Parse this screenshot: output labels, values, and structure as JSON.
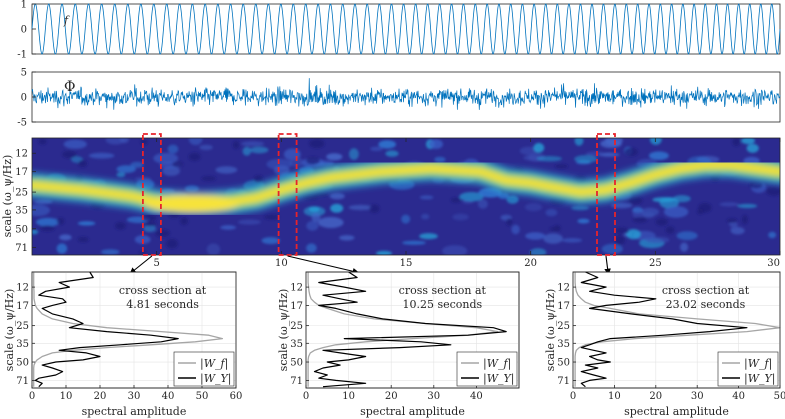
{
  "chart_data": [
    {
      "id": "signal_f",
      "type": "line",
      "label": "f",
      "ylim": [
        -1,
        1
      ],
      "yticks": [
        "-1",
        "0",
        "1"
      ],
      "xlim": [
        0,
        30
      ],
      "description_series": {
        "name": "f",
        "kind": "chirp-like sinusoid",
        "amplitude": 1,
        "approx_cycles": 62
      }
    },
    {
      "id": "signal_phi",
      "type": "line",
      "label": "Φ",
      "ylim": [
        -5,
        5
      ],
      "yticks": [
        "-5",
        "0",
        "5"
      ],
      "xlim": [
        0,
        30
      ],
      "series": [
        {
          "name": "Φ",
          "kind": "noisy signal",
          "typical_amplitude": 2.5
        }
      ]
    },
    {
      "id": "scalogram",
      "type": "heatmap",
      "ylabel": "scale (ω_ψ/Hz)",
      "yticks": [
        "12",
        "17",
        "25",
        "35",
        "50",
        "71"
      ],
      "xticks": [
        "5",
        "10",
        "15",
        "20",
        "25",
        "30"
      ],
      "xlim": [
        0,
        30
      ],
      "ridge": {
        "time": [
          0,
          2,
          4,
          5,
          6,
          7,
          8,
          9,
          10,
          11,
          12,
          14,
          16,
          18,
          19,
          20,
          21,
          22,
          23,
          24,
          25,
          26,
          27,
          28,
          30
        ],
        "scale": [
          22,
          24,
          27,
          30,
          31,
          31,
          30,
          28,
          24,
          21,
          19,
          17,
          16,
          17,
          20,
          21,
          23,
          25,
          24,
          21,
          18,
          16,
          15,
          15,
          17
        ]
      },
      "cross_sections_seconds": [
        4.81,
        10.25,
        23.02
      ]
    },
    {
      "id": "cross_section_1",
      "type": "line",
      "annotation": "cross section at\n4.81 seconds",
      "annotation_lines": [
        "cross section at",
        "4.81 seconds"
      ],
      "xlabel": "spectral amplitude",
      "ylabel": "scale (ω_ψ/Hz)",
      "xticks": [
        "0",
        "10",
        "20",
        "30",
        "40",
        "50",
        "60"
      ],
      "xlim": [
        0,
        60
      ],
      "yticks": [
        "12",
        "17",
        "25",
        "35",
        "50",
        "71"
      ],
      "legend": [
        "|W_f|",
        "|W_Y|"
      ],
      "scale": [
        9,
        10,
        11,
        12,
        13,
        14,
        15,
        16,
        17,
        18,
        20,
        22,
        24,
        26,
        28,
        30,
        32,
        34,
        36,
        38,
        40,
        42,
        45,
        48,
        50,
        53,
        56,
        60,
        64,
        68,
        71,
        75,
        80
      ],
      "series": [
        {
          "name": "|W_f|",
          "color": "#a6a6a6",
          "values": [
            0.5,
            0.5,
            0.5,
            0.5,
            0.6,
            0.6,
            0.6,
            0.8,
            1,
            1.5,
            3,
            6,
            12,
            22,
            38,
            52,
            56,
            48,
            35,
            22,
            12,
            6,
            3,
            1.5,
            1,
            0.6,
            0.5,
            0.5,
            0.5,
            0.5,
            0.5,
            0.5,
            0.5
          ]
        },
        {
          "name": "|W_Y|",
          "color": "#000000",
          "values": [
            17,
            18,
            8,
            11,
            4,
            2,
            9,
            10,
            6,
            3,
            6,
            12,
            15,
            11,
            22,
            35,
            43,
            38,
            26,
            14,
            8,
            16,
            20,
            15,
            7,
            3,
            6,
            9,
            7,
            2,
            1,
            3,
            2
          ]
        }
      ]
    },
    {
      "id": "cross_section_2",
      "type": "line",
      "annotation": "cross section at\n10.25 seconds",
      "annotation_lines": [
        "cross section at",
        "10.25 seconds"
      ],
      "xlabel": "spectral amplitude",
      "ylabel": "scale (ω_ψ/Hz)",
      "xticks": [
        "0",
        "10",
        "20",
        "30",
        "40"
      ],
      "xlim": [
        0,
        50
      ],
      "yticks": [
        "12",
        "17",
        "25",
        "35",
        "50",
        "71"
      ],
      "legend": [
        "|W_f|",
        "|W_Y|"
      ],
      "scale": [
        9,
        10,
        11,
        12,
        13,
        14,
        15,
        16,
        17,
        18,
        20,
        22,
        24,
        26,
        28,
        30,
        32,
        34,
        36,
        38,
        40,
        42,
        45,
        48,
        50,
        53,
        56,
        60,
        64,
        68,
        71,
        75,
        80
      ],
      "series": [
        {
          "name": "|W_f|",
          "color": "#a6a6a6",
          "values": [
            0.5,
            0.5,
            0.5,
            0.6,
            0.7,
            0.9,
            1.2,
            2,
            3,
            5,
            9,
            16,
            28,
            40,
            45,
            38,
            25,
            14,
            7,
            4,
            2,
            1,
            0.6,
            0.5,
            0.5,
            0.5,
            0.5,
            0.5,
            0.5,
            0.5,
            0.5,
            0.5,
            0.5
          ]
        },
        {
          "name": "|W_Y|",
          "color": "#000000",
          "values": [
            10,
            12,
            3,
            9,
            14,
            4,
            8,
            12,
            3,
            7,
            12,
            18,
            28,
            44,
            47,
            38,
            9,
            27,
            34,
            22,
            4,
            8,
            14,
            10,
            5,
            8,
            4,
            2,
            5,
            3,
            7,
            14,
            4
          ]
        }
      ]
    },
    {
      "id": "cross_section_3",
      "type": "line",
      "annotation": "cross section at\n23.02 seconds",
      "annotation_lines": [
        "cross section at",
        "23.02 seconds"
      ],
      "xlabel": "spectral amplitude",
      "ylabel": "scale (ω_ψ/Hz)",
      "xticks": [
        "0",
        "10",
        "20",
        "30",
        "40",
        "50"
      ],
      "xlim": [
        0,
        50
      ],
      "yticks": [
        "12",
        "17",
        "25",
        "35",
        "50",
        "71"
      ],
      "legend": [
        "|W_f|",
        "|W_Y|"
      ],
      "scale": [
        9,
        10,
        11,
        12,
        13,
        14,
        15,
        16,
        17,
        18,
        20,
        22,
        24,
        26,
        28,
        30,
        32,
        34,
        36,
        38,
        40,
        42,
        45,
        48,
        50,
        53,
        56,
        60,
        64,
        68,
        71,
        75,
        80
      ],
      "series": [
        {
          "name": "|W_f|",
          "color": "#a6a6a6",
          "values": [
            0.5,
            0.5,
            0.5,
            0.6,
            0.8,
            1.2,
            2,
            3,
            5,
            9,
            16,
            30,
            44,
            50,
            42,
            28,
            15,
            7,
            3,
            1.5,
            0.8,
            0.6,
            0.5,
            0.5,
            0.5,
            0.5,
            0.5,
            0.5,
            0.5,
            0.5,
            0.5,
            0.5,
            0.5
          ]
        },
        {
          "name": "|W_Y|",
          "color": "#000000",
          "values": [
            3,
            6,
            2,
            8,
            4,
            10,
            20,
            16,
            8,
            4,
            14,
            24,
            30,
            42,
            33,
            22,
            9,
            6,
            4,
            2,
            5,
            8,
            4,
            6,
            9,
            3,
            6,
            2,
            5,
            8,
            4,
            2,
            3
          ]
        }
      ]
    }
  ]
}
